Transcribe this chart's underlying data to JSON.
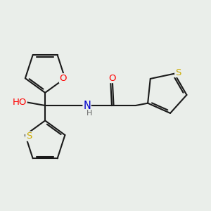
{
  "bg_color": "#eaeeea",
  "bond_color": "#1a1a1a",
  "bond_width": 1.5,
  "atom_colors": {
    "O": "#ff0000",
    "S": "#ccaa00",
    "N": "#0000cc",
    "C": "#1a1a1a",
    "H": "#666666"
  },
  "font_size": 9.5,
  "fig_size": [
    3.0,
    3.0
  ],
  "dpi": 100
}
